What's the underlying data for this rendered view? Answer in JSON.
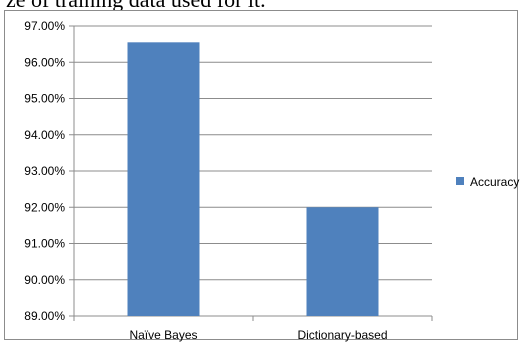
{
  "caption_fragment": "ze of training data used for it.",
  "colors": {
    "series": "#4f81bd",
    "grid": "#8c8c8c",
    "axis": "#8c8c8c"
  },
  "chart_data": {
    "type": "bar",
    "categories": [
      "Naïve Bayes",
      "Dictionary-based"
    ],
    "series": [
      {
        "name": "Accuracy",
        "values": [
          96.55,
          92.0
        ]
      }
    ],
    "ylim": [
      89,
      97
    ],
    "yticks": [
      "89.00%",
      "90.00%",
      "91.00%",
      "92.00%",
      "93.00%",
      "94.00%",
      "95.00%",
      "96.00%",
      "97.00%"
    ],
    "grid": true,
    "legend": "right"
  }
}
